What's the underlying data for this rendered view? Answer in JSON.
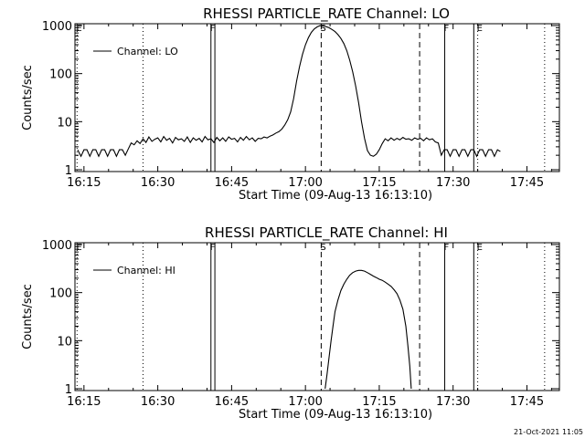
{
  "chart_data": [
    {
      "type": "line",
      "title": "RHESSI PARTICLE_RATE Channel: LO",
      "xlabel": "Start Time (09-Aug-13 16:13:10)",
      "ylabel": "Counts/sec",
      "yscale": "log",
      "ylim": [
        1,
        1000
      ],
      "xlim_min": [
        13.17,
        101.5
      ],
      "x_tick_labels": [
        "16:15",
        "16:30",
        "16:45",
        "17:00",
        "17:15",
        "17:30",
        "17:45"
      ],
      "x_tick_min": [
        15,
        30,
        45,
        60,
        75,
        90,
        105
      ],
      "y_tick_labels": [
        "1",
        "10",
        "100",
        "1000"
      ],
      "y_tick_values": [
        1,
        10,
        100,
        1000
      ],
      "legend": {
        "label": "Channel: LO",
        "position": "top-left"
      },
      "markers": [
        {
          "label": "E",
          "min": 13.6,
          "style": "dotted"
        },
        {
          "label": "",
          "min": 27.0,
          "style": "dotted"
        },
        {
          "label": "F",
          "min": 40.8,
          "style": "solid"
        },
        {
          "label": "",
          "min": 41.6,
          "style": "solid"
        },
        {
          "label": "S",
          "min": 63.2,
          "style": "dashed"
        },
        {
          "label": "",
          "min": 83.2,
          "style": "dashed"
        },
        {
          "label": "F",
          "min": 88.3,
          "style": "solid"
        },
        {
          "label": "",
          "min": 94.2,
          "style": "solid"
        },
        {
          "label": "E",
          "min": 95.0,
          "style": "dotted"
        },
        {
          "label": "",
          "min": 108.6,
          "style": "dotted"
        }
      ],
      "series": [
        {
          "min": [
            13.7,
            14.4,
            15.0,
            15.6,
            16.2,
            16.8,
            17.4,
            18.0,
            18.6,
            19.2,
            19.8,
            20.4,
            21.0,
            21.6,
            22.2,
            22.8,
            23.4,
            24.0,
            24.6,
            25.2,
            25.8,
            26.4,
            27.0,
            27.6,
            28.2,
            28.8,
            29.4,
            30.0,
            30.6,
            31.2,
            31.8,
            32.4,
            33.0,
            33.6,
            34.2,
            34.8,
            35.4,
            36.0,
            36.6,
            37.2,
            37.8,
            38.4,
            39.0,
            39.6,
            40.2,
            40.8,
            41.4,
            42.0,
            42.6,
            43.2,
            43.8,
            44.4,
            45.0,
            45.6,
            46.2,
            46.8,
            47.4,
            48.0,
            48.6,
            49.2,
            49.8,
            50.4,
            51.0,
            51.6,
            52.2,
            52.8,
            53.4,
            54.0,
            54.6,
            55.2,
            55.8,
            56.4,
            57.0,
            57.6,
            58.2,
            58.8,
            59.4,
            60.0,
            60.6,
            61.2,
            61.8,
            62.4,
            63.0,
            63.6,
            64.2,
            64.8,
            65.4,
            66.0,
            66.6,
            67.2,
            67.8,
            68.4,
            69.0,
            69.6,
            70.2,
            70.8,
            71.4,
            72.0,
            72.6,
            73.2,
            73.8,
            74.4,
            75.0,
            75.6,
            76.2,
            76.8,
            77.4,
            78.0,
            78.6,
            79.2,
            79.8,
            80.4,
            81.0,
            81.6,
            82.2,
            82.8,
            83.4,
            84.0,
            84.6,
            85.2,
            85.8,
            86.4,
            87.0,
            87.6,
            88.2,
            88.8,
            89.4,
            90.0,
            90.6,
            91.2,
            91.8,
            92.4,
            93.0,
            93.6,
            94.2,
            94.8,
            95.4,
            96.0,
            96.6,
            97.2,
            97.8,
            98.4,
            99.0,
            99.6,
            100.2,
            100.8,
            101.4
          ],
          "values": [
            2.6,
            1.9,
            2.6,
            2.6,
            1.9,
            2.6,
            2.6,
            1.9,
            2.6,
            2.6,
            1.9,
            2.6,
            2.6,
            1.9,
            2.6,
            2.6,
            2.0,
            2.7,
            3.6,
            3.3,
            4.0,
            3.5,
            4.4,
            3.7,
            4.8,
            3.9,
            4.3,
            4.6,
            3.8,
            4.9,
            4.1,
            4.5,
            3.6,
            4.7,
            4.2,
            4.4,
            3.9,
            4.8,
            3.7,
            4.6,
            4.1,
            4.5,
            3.8,
            4.9,
            4.2,
            4.4,
            3.7,
            4.7,
            4.0,
            4.6,
            3.9,
            4.8,
            4.3,
            4.5,
            3.8,
            4.7,
            4.1,
            4.9,
            4.2,
            4.6,
            3.9,
            4.5,
            4.4,
            4.8,
            4.6,
            5.0,
            5.3,
            5.8,
            6.2,
            7.0,
            8.5,
            11,
            16,
            30,
            70,
            140,
            250,
            400,
            560,
            720,
            850,
            940,
            1000,
            980,
            950,
            900,
            830,
            750,
            650,
            540,
            420,
            300,
            190,
            110,
            55,
            25,
            10,
            4.5,
            2.5,
            2.0,
            1.9,
            2.1,
            2.6,
            3.5,
            4.4,
            4.0,
            4.6,
            4.1,
            4.5,
            4.2,
            4.7,
            4.3,
            4.4,
            4.1,
            4.6,
            4.3,
            4.5,
            4.0,
            4.6,
            4.2,
            4.4,
            3.8,
            3.6,
            2.0,
            2.6,
            2.6,
            1.9,
            2.6,
            2.6,
            1.9,
            2.6,
            2.6,
            1.9,
            2.6,
            2.6,
            1.9,
            2.6,
            2.6,
            1.9,
            2.6,
            2.6,
            1.9,
            2.6,
            2.4
          ]
        }
      ]
    },
    {
      "type": "line",
      "title": "RHESSI PARTICLE_RATE Channel: HI",
      "xlabel": "Start Time (09-Aug-13 16:13:10)",
      "ylabel": "Counts/sec",
      "yscale": "log",
      "ylim": [
        1,
        1000
      ],
      "x_tick_labels": [
        "16:15",
        "16:30",
        "16:45",
        "17:00",
        "17:15",
        "17:30",
        "17:45"
      ],
      "x_tick_min": [
        15,
        30,
        45,
        60,
        75,
        90,
        105
      ],
      "y_tick_labels": [
        "1",
        "10",
        "100",
        "1000"
      ],
      "y_tick_values": [
        1,
        10,
        100,
        1000
      ],
      "legend": {
        "label": "Channel: HI",
        "position": "top-left"
      },
      "markers": [
        {
          "label": "E",
          "min": 13.6,
          "style": "dotted"
        },
        {
          "label": "",
          "min": 27.0,
          "style": "dotted"
        },
        {
          "label": "F",
          "min": 40.8,
          "style": "solid"
        },
        {
          "label": "",
          "min": 41.6,
          "style": "solid"
        },
        {
          "label": "S",
          "min": 63.2,
          "style": "dashed"
        },
        {
          "label": "",
          "min": 83.2,
          "style": "dashed"
        },
        {
          "label": "F",
          "min": 88.3,
          "style": "solid"
        },
        {
          "label": "",
          "min": 94.2,
          "style": "solid"
        },
        {
          "label": "E",
          "min": 95.0,
          "style": "dotted"
        },
        {
          "label": "",
          "min": 108.6,
          "style": "dotted"
        }
      ],
      "series": [
        {
          "min": [
            64.0,
            64.4,
            64.8,
            65.2,
            65.6,
            66.0,
            66.6,
            67.2,
            67.8,
            68.4,
            69.0,
            69.6,
            70.2,
            70.8,
            71.4,
            72.0,
            72.6,
            73.2,
            73.8,
            74.4,
            75.0,
            75.6,
            76.2,
            76.8,
            77.4,
            78.0,
            78.6,
            79.2,
            79.8,
            80.4,
            80.8,
            81.2,
            81.5
          ],
          "values": [
            1.0,
            2.0,
            4.5,
            10,
            20,
            40,
            70,
            110,
            150,
            190,
            230,
            260,
            280,
            290,
            290,
            280,
            260,
            240,
            220,
            205,
            190,
            180,
            165,
            150,
            135,
            115,
            95,
            70,
            45,
            20,
            8,
            3,
            1.0
          ]
        }
      ]
    }
  ],
  "footer": {
    "timestamp": "21-Oct-2021 11:05"
  }
}
